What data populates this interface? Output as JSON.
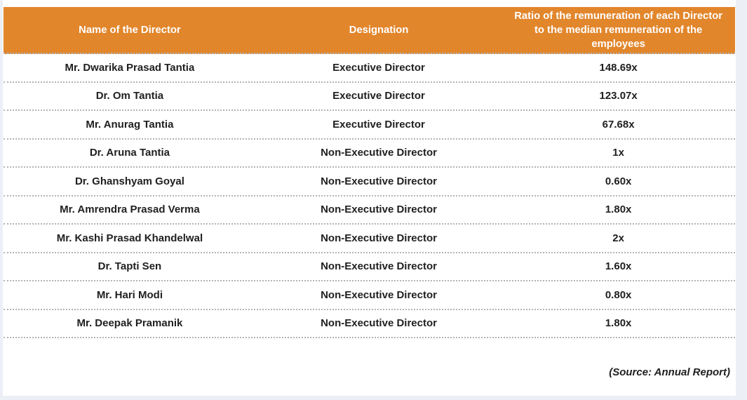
{
  "table": {
    "columns": {
      "name": "Name of the Director",
      "designation": "Designation",
      "ratio": "Ratio of the remuneration of each Director\nto the median remuneration of the\nemployees"
    },
    "rows": [
      {
        "name": "Mr. Dwarika Prasad Tantia",
        "designation": "Executive Director",
        "ratio": "148.69x"
      },
      {
        "name": "Dr. Om Tantia",
        "designation": "Executive Director",
        "ratio": "123.07x"
      },
      {
        "name": "Mr. Anurag Tantia",
        "designation": "Executive Director",
        "ratio": "67.68x"
      },
      {
        "name": "Dr. Aruna Tantia",
        "designation": "Non-Executive Director",
        "ratio": "1x"
      },
      {
        "name": "Dr. Ghanshyam Goyal",
        "designation": "Non-Executive Director",
        "ratio": "0.60x"
      },
      {
        "name": "Mr. Amrendra Prasad Verma",
        "designation": "Non-Executive Director",
        "ratio": "1.80x"
      },
      {
        "name": "Mr. Kashi Prasad Khandelwal",
        "designation": "Non-Executive Director",
        "ratio": "2x"
      },
      {
        "name": "Dr. Tapti Sen",
        "designation": "Non-Executive Director",
        "ratio": "1.60x"
      },
      {
        "name": "Mr. Hari Modi",
        "designation": "Non-Executive Director",
        "ratio": "0.80x"
      },
      {
        "name": "Mr. Deepak Pramanik",
        "designation": "Non-Executive Director",
        "ratio": "1.80x"
      }
    ]
  },
  "source_note": "(Source: Annual Report)",
  "colors": {
    "header_bg": "#E2862C",
    "header_text": "#FFFFFF",
    "body_text": "#1F1F1F",
    "divider": "#B3B3B3",
    "page_edge": "#EDEFF7"
  }
}
